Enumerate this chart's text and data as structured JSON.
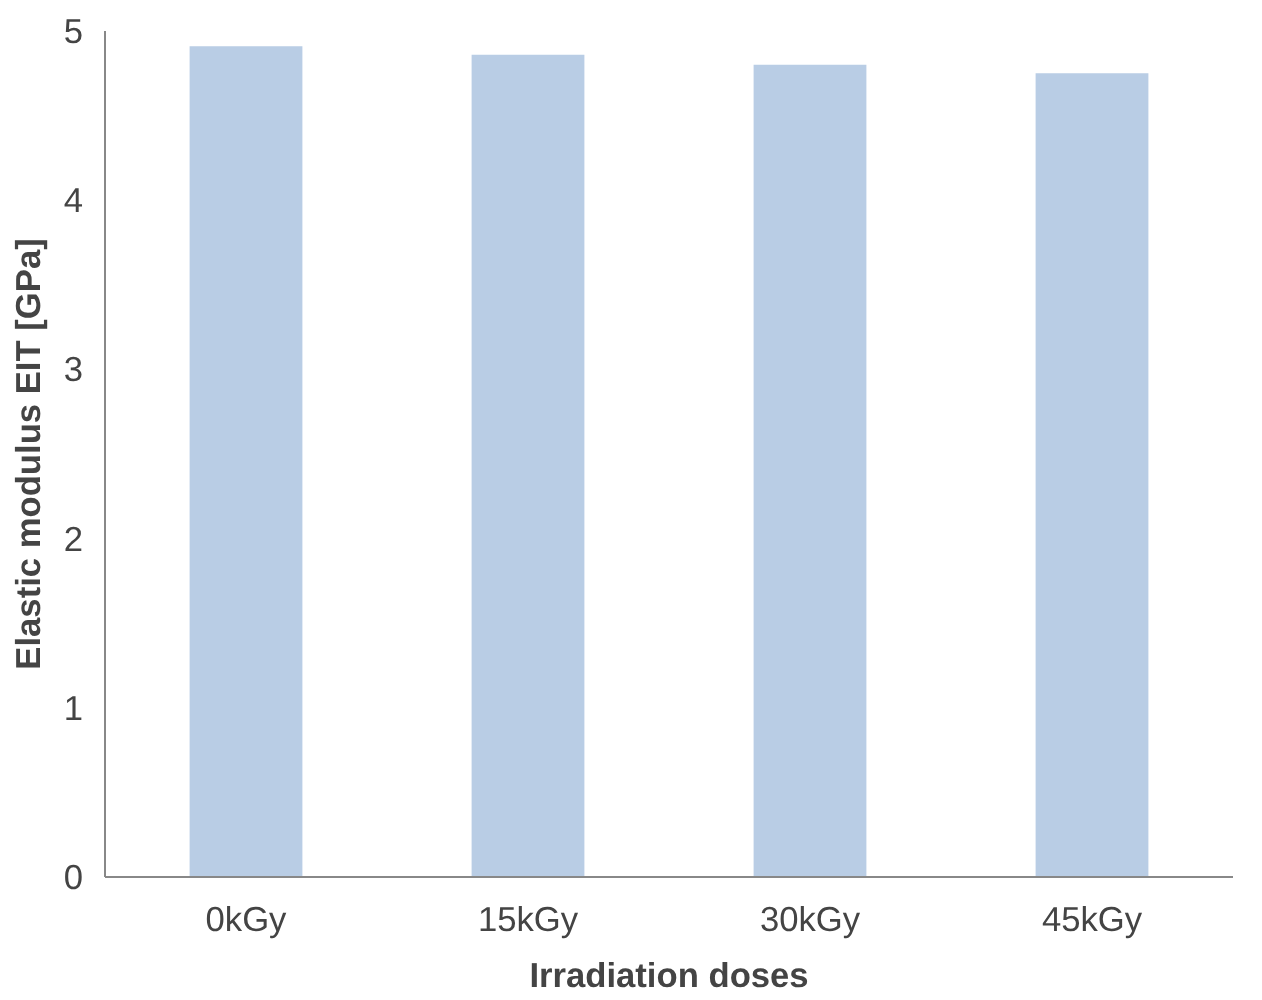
{
  "chart_data": {
    "type": "bar",
    "xlabel": "Irradiation doses",
    "ylabel": "Elastic modulus EIT [GPa]",
    "categories": [
      "0kGy",
      "15kGy",
      "30kGy",
      "45kGy"
    ],
    "values": [
      4.91,
      4.86,
      4.8,
      4.75
    ],
    "color": "#b9cde5",
    "ylim": [
      0,
      5
    ],
    "yticks": [
      0,
      1,
      2,
      3,
      4,
      5
    ],
    "grid": false
  }
}
